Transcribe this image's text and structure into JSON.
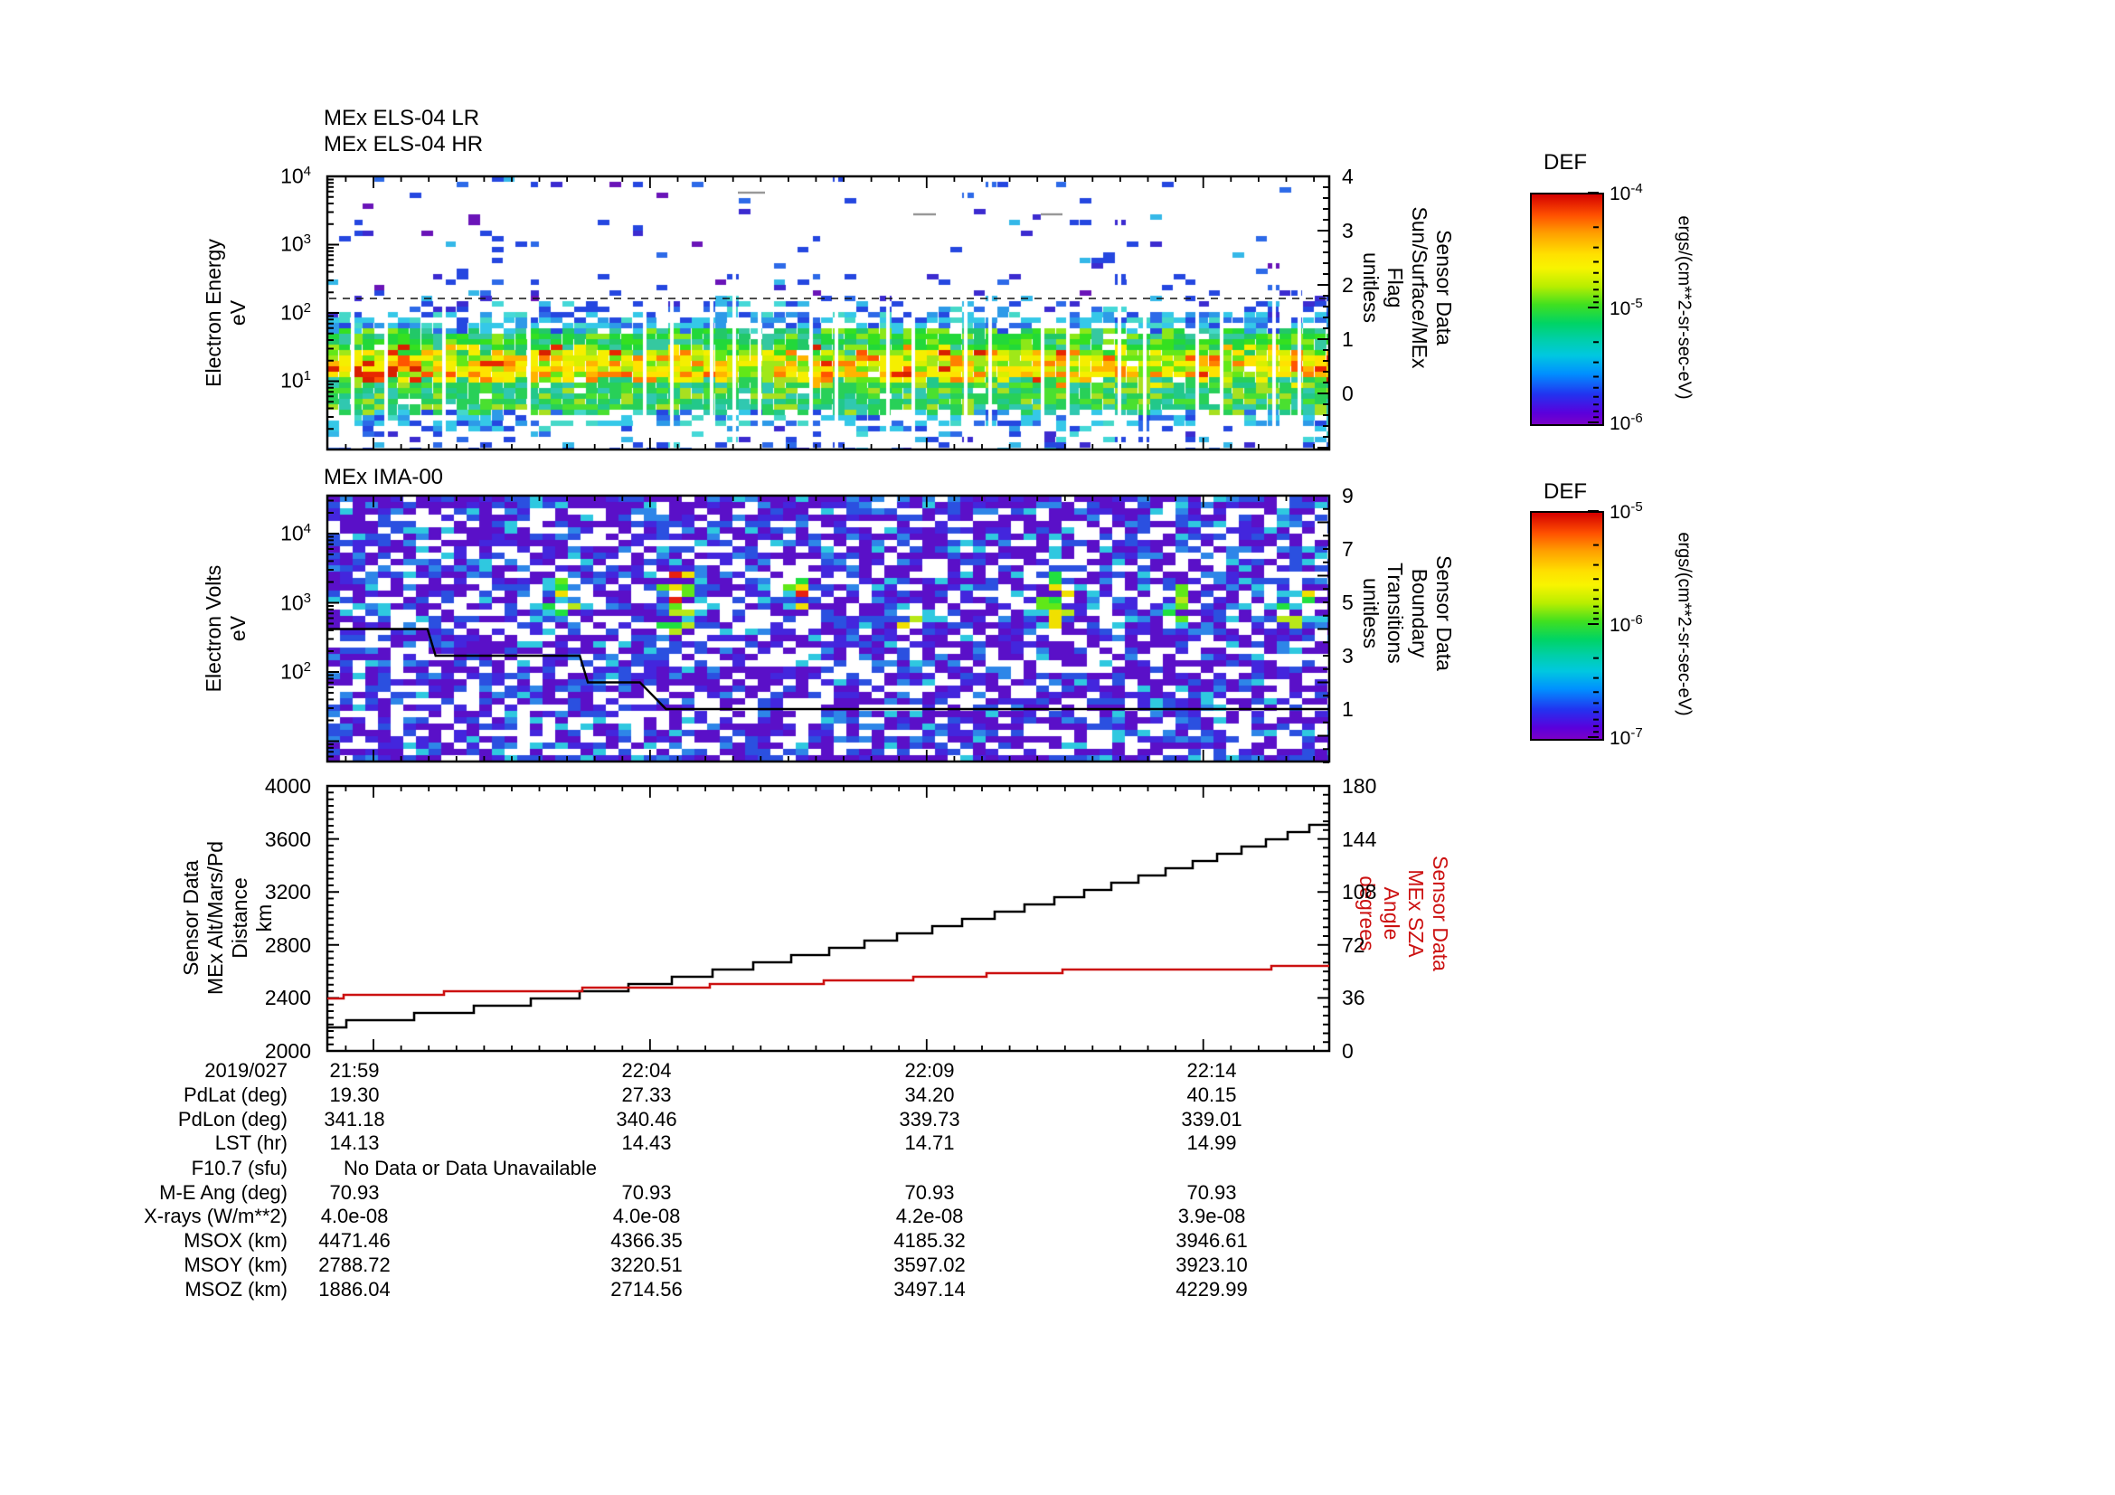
{
  "page": {
    "background": "#ffffff"
  },
  "plots": {
    "els": {
      "titles": [
        "MEx ELS-04 LR",
        "MEx ELS-04 HR"
      ],
      "ylabel": "Electron Energy\neV",
      "left_exponents": [
        4,
        3,
        2,
        1
      ],
      "right_label": "Sensor Data\nSun/Surface/MEx\nFlag\nunitless",
      "right_ticks": [
        "4",
        "3",
        "2",
        "1",
        "0"
      ]
    },
    "ima": {
      "title": "MEx IMA-00",
      "ylabel": "Electron Volts\neV",
      "left_exponents": [
        4,
        3,
        2
      ],
      "right_label": "Sensor Data\nBoundary\nTransitions\nunitless",
      "right_ticks": [
        "9",
        "7",
        "5",
        "3",
        "1"
      ]
    },
    "aux": {
      "ylabel": "Sensor Data\nMEx Alt/Mars/Pd\nDistance\nkm",
      "left_ticks": [
        "4000",
        "3600",
        "3200",
        "2800",
        "2400",
        "2000"
      ],
      "right_label": "Sensor Data\nMEx SZA\nAngle\ndegrees",
      "right_ticks": [
        "180",
        "144",
        "108",
        "72",
        "36",
        "0"
      ],
      "right_label_color": "#cc1111"
    }
  },
  "colorbars": [
    {
      "title": "DEF",
      "tick_exponents": [
        -4,
        -5,
        -6
      ],
      "unit_label": "ergs/(cm**2-sr-sec-eV)"
    },
    {
      "title": "DEF",
      "tick_exponents": [
        -5,
        -6,
        -7
      ],
      "unit_label": "ergs/(cm**2-sr-sec-eV)"
    }
  ],
  "xaxis": {
    "date_label": "2019/027",
    "tick_labels": [
      "21:59",
      "22:04",
      "22:09",
      "22:14"
    ]
  },
  "table": {
    "rows": [
      {
        "label": "2019/027",
        "values": [
          "21:59",
          "22:04",
          "22:09",
          "22:14"
        ]
      },
      {
        "label": "PdLat (deg)",
        "values": [
          "19.30",
          "27.33",
          "34.20",
          "40.15"
        ]
      },
      {
        "label": "PdLon (deg)",
        "values": [
          "341.18",
          "340.46",
          "339.73",
          "339.01"
        ]
      },
      {
        "label": "LST (hr)",
        "values": [
          "14.13",
          "14.43",
          "14.71",
          "14.99"
        ]
      },
      {
        "label": "F10.7 (sfu)",
        "values": [],
        "span_text": "No Data or Data Unavailable"
      },
      {
        "label": "M-E Ang (deg)",
        "values": [
          "70.93",
          "70.93",
          "70.93",
          "70.93"
        ]
      },
      {
        "label": "X-rays (W/m**2)",
        "values": [
          "4.0e-08",
          "4.0e-08",
          "4.2e-08",
          "3.9e-08"
        ]
      },
      {
        "label": "MSOX (km)",
        "values": [
          "4471.46",
          "4366.35",
          "4185.32",
          "3946.61"
        ]
      },
      {
        "label": "MSOY (km)",
        "values": [
          "2788.72",
          "3220.51",
          "3597.02",
          "3923.10"
        ]
      },
      {
        "label": "MSOZ (km)",
        "values": [
          "1886.04",
          "2714.56",
          "3497.14",
          "4229.99"
        ]
      }
    ]
  },
  "chart_data": [
    {
      "type": "heatmap",
      "title": "MEx ELS-04 LR / MEx ELS-04 HR",
      "ylabel": "Electron Energy eV",
      "y_scale": "log",
      "ylim": [
        1,
        10000
      ],
      "x_range": [
        "21:58",
        "22:16"
      ],
      "x_ticks": [
        "21:59",
        "22:04",
        "22:09",
        "22:14"
      ],
      "z_label": "DEF ergs/(cm**2-sr-sec-eV)",
      "zlim": [
        1e-06,
        0.0001
      ],
      "colormap": "rainbow",
      "right_axis": {
        "label": "Sensor Data Sun/Surface/MEx Flag unitless",
        "range": [
          -1,
          4
        ]
      },
      "flag_line": {
        "value": 1.75,
        "style": "dashed"
      },
      "flag_dashes": [
        {
          "x": [
            0.41,
            0.437
          ],
          "value": 3.7
        },
        {
          "x": [
            0.585,
            0.607
          ],
          "value": 3.3
        },
        {
          "x": [
            0.712,
            0.734
          ],
          "value": 3.3
        }
      ],
      "bands": [
        {
          "logE": [
            2.55,
            4.0
          ],
          "fill": 0.045,
          "palette": "speckle"
        },
        {
          "logE": [
            2.2,
            2.55
          ],
          "fill": 0.1,
          "palette": "speckle"
        },
        {
          "logE": [
            2.0,
            2.2
          ],
          "fill": 0.28,
          "palette": "speckle_cyan"
        },
        {
          "logE": [
            1.75,
            2.0
          ],
          "fill": 0.75,
          "palette": "cyan_blue"
        },
        {
          "logE": [
            1.45,
            1.75
          ],
          "fill": 0.96,
          "palette": "green"
        },
        {
          "logE": [
            1.0,
            1.45
          ],
          "fill": 0.99,
          "palette": "hot"
        },
        {
          "logE": [
            0.55,
            1.0
          ],
          "fill": 0.96,
          "palette": "green_teal"
        },
        {
          "logE": [
            0.3,
            0.55
          ],
          "fill": 0.5,
          "palette": "cyan_blue"
        },
        {
          "logE": [
            0.0,
            0.3
          ],
          "fill": 0.22,
          "palette": "speckle_cyan"
        }
      ],
      "gap_columns": [
        0.025,
        0.059,
        0.116,
        0.201,
        0.317,
        0.344,
        0.384,
        0.406,
        0.431,
        0.483,
        0.508,
        0.56,
        0.585,
        0.637,
        0.662,
        0.714,
        0.739,
        0.791,
        0.816,
        0.868,
        0.893,
        0.945,
        0.97
      ]
    },
    {
      "type": "heatmap",
      "title": "MEx IMA-00",
      "ylabel": "Electron Volts eV",
      "y_scale": "log",
      "ylim": [
        5,
        35000
      ],
      "x_range": [
        "21:58",
        "22:16"
      ],
      "x_ticks": [
        "21:59",
        "22:04",
        "22:09",
        "22:14"
      ],
      "z_label": "DEF ergs/(cm**2-sr-sec-eV)",
      "zlim": [
        1e-07,
        1e-05
      ],
      "colormap": "rainbow",
      "base_fill": 0.68,
      "right_axis": {
        "label": "Sensor Data Boundary Transitions unitless",
        "range": [
          -1,
          9.1
        ]
      },
      "boundary_line": [
        [
          0,
          4
        ],
        [
          0.1,
          4
        ],
        [
          0.108,
          3
        ],
        [
          0.252,
          3
        ],
        [
          0.26,
          2
        ],
        [
          0.312,
          2
        ],
        [
          0.338,
          1
        ],
        [
          1.0,
          1
        ]
      ],
      "hotspots": [
        {
          "x": 0.225,
          "logE": [
            2.8,
            3.35
          ],
          "strength": 0.7
        },
        {
          "x": 0.345,
          "logE": [
            2.55,
            3.45
          ],
          "strength": 1.0
        },
        {
          "x": 0.465,
          "logE": [
            2.9,
            3.4
          ],
          "strength": 1.0
        },
        {
          "x": 0.47,
          "logE": [
            2.5,
            2.65
          ],
          "strength": 0.6
        },
        {
          "x": 0.575,
          "logE": [
            2.6,
            2.9
          ],
          "strength": 0.5
        },
        {
          "x": 0.72,
          "logE": [
            2.5,
            3.45
          ],
          "strength": 1.0
        },
        {
          "x": 0.845,
          "logE": [
            2.7,
            3.3
          ],
          "strength": 0.8
        },
        {
          "x": 0.965,
          "logE": [
            2.5,
            3.15
          ],
          "strength": 0.8
        }
      ]
    },
    {
      "type": "line",
      "ylabel_left": "Sensor Data MEx Alt/Mars/Pd Distance km",
      "ylim_left": [
        2000,
        4000
      ],
      "ylabel_right": "Sensor Data MEx SZA Angle degrees",
      "ylim_right": [
        0,
        180
      ],
      "x_range": [
        "21:58",
        "22:16"
      ],
      "x_ticks": [
        "21:59",
        "22:04",
        "22:09",
        "22:14"
      ],
      "series": [
        {
          "name": "MEx Alt/Mars/Pd Distance (km)",
          "color": "#000000",
          "axis": "left",
          "style": "staircase",
          "x_fraction": [
            0,
            0.05,
            0.1,
            0.15,
            0.2,
            0.25,
            0.3,
            0.35,
            0.4,
            0.45,
            0.5,
            0.55,
            0.6,
            0.65,
            0.7,
            0.75,
            0.8,
            0.85,
            0.9,
            0.95,
            1.0
          ],
          "values": [
            2190,
            2230,
            2272,
            2318,
            2368,
            2422,
            2480,
            2542,
            2608,
            2678,
            2752,
            2830,
            2912,
            2998,
            3088,
            3182,
            3280,
            3382,
            3488,
            3605,
            3730
          ]
        },
        {
          "name": "MEx SZA Angle (degrees)",
          "color": "#cc1111",
          "axis": "right",
          "style": "staircase",
          "x_fraction": [
            0,
            0.03,
            0.07,
            0.12,
            0.18,
            0.24,
            0.27,
            0.33,
            0.39,
            0.45,
            0.5,
            0.55,
            0.6,
            0.64,
            0.68,
            0.72,
            0.76,
            0.82,
            0.88,
            0.93,
            1.0
          ],
          "values": [
            36.3,
            37.4,
            38.6,
            39.4,
            40.2,
            41.2,
            42.4,
            43.4,
            44.4,
            45.6,
            46.8,
            48.2,
            49.6,
            51.0,
            52.4,
            53.8,
            54.6,
            55.2,
            55.8,
            56.4,
            57.2
          ]
        }
      ]
    }
  ]
}
